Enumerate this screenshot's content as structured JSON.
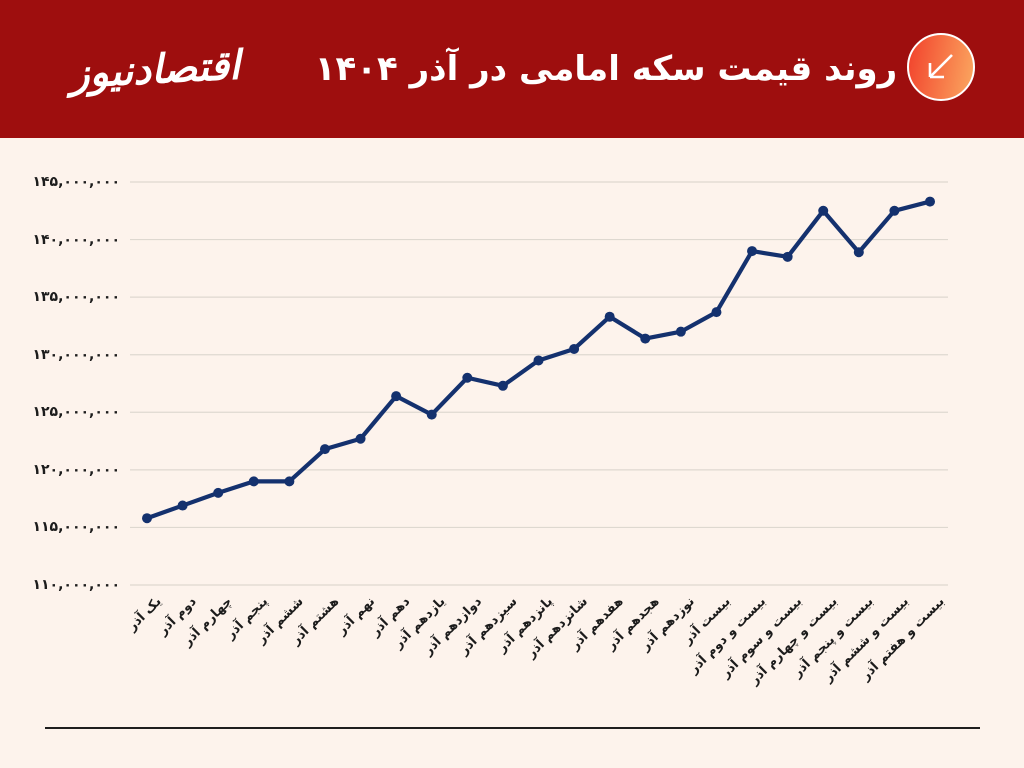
{
  "header": {
    "logo": "اقتصادنیوز",
    "title": "روند قیمت سکه امامی در آذر ۱۴۰۴",
    "icon": "arrow-down-left-icon",
    "background_color": "#9e0e0e",
    "icon_gradient": [
      "#f2462e",
      "#fba35e"
    ]
  },
  "chart_data": {
    "type": "line",
    "title": "روند قیمت سکه امامی در آذر ۱۴۰۴",
    "categories": [
      "یک آذر",
      "دوم آذر",
      "چهارم آذر",
      "پنجم آذر",
      "ششم آذر",
      "هشتم آذر",
      "نهم آذر",
      "دهم آذر",
      "یازدهم آذر",
      "دوازدهم آذر",
      "سیزدهم آذر",
      "پانزدهم آذر",
      "شانزدهم آذر",
      "هفدهم آذر",
      "هجدهم آذر",
      "نوزدهم آذر",
      "بیست آذر",
      "بیست و دوم آذر",
      "بیست و سوم آذر",
      "بیست و چهارم آذر",
      "بیست و پنجم آذر",
      "بیست و ششم آذر",
      "بیست و هفتم آذر"
    ],
    "values": [
      115800000,
      116900000,
      118000000,
      119000000,
      119000000,
      121800000,
      122700000,
      126400000,
      124800000,
      128000000,
      127300000,
      129500000,
      130500000,
      133300000,
      131400000,
      132000000,
      133700000,
      139000000,
      138500000,
      142500000,
      138900000,
      142500000,
      143300000
    ],
    "y_ticks": [
      {
        "value": 145000000,
        "label": "۱۴۵,۰۰۰,۰۰۰"
      },
      {
        "value": 140000000,
        "label": "۱۴۰,۰۰۰,۰۰۰"
      },
      {
        "value": 135000000,
        "label": "۱۳۵,۰۰۰,۰۰۰"
      },
      {
        "value": 130000000,
        "label": "۱۳۰,۰۰۰,۰۰۰"
      },
      {
        "value": 125000000,
        "label": "۱۲۵,۰۰۰,۰۰۰"
      },
      {
        "value": 120000000,
        "label": "۱۲۰,۰۰۰,۰۰۰"
      },
      {
        "value": 115000000,
        "label": "۱۱۵,۰۰۰,۰۰۰"
      },
      {
        "value": 110000000,
        "label": "۱۱۰,۰۰۰,۰۰۰"
      }
    ],
    "ylim": [
      110000000,
      145000000
    ],
    "xlabel": "",
    "ylabel": "",
    "x_label_rotation": 45,
    "grid": true,
    "legend": "none",
    "line_color": "#14316e",
    "marker": "circle",
    "gridline_color": "#ded8d0",
    "background_color": "#fdf3ec",
    "text_color": "#1c1c1c"
  }
}
